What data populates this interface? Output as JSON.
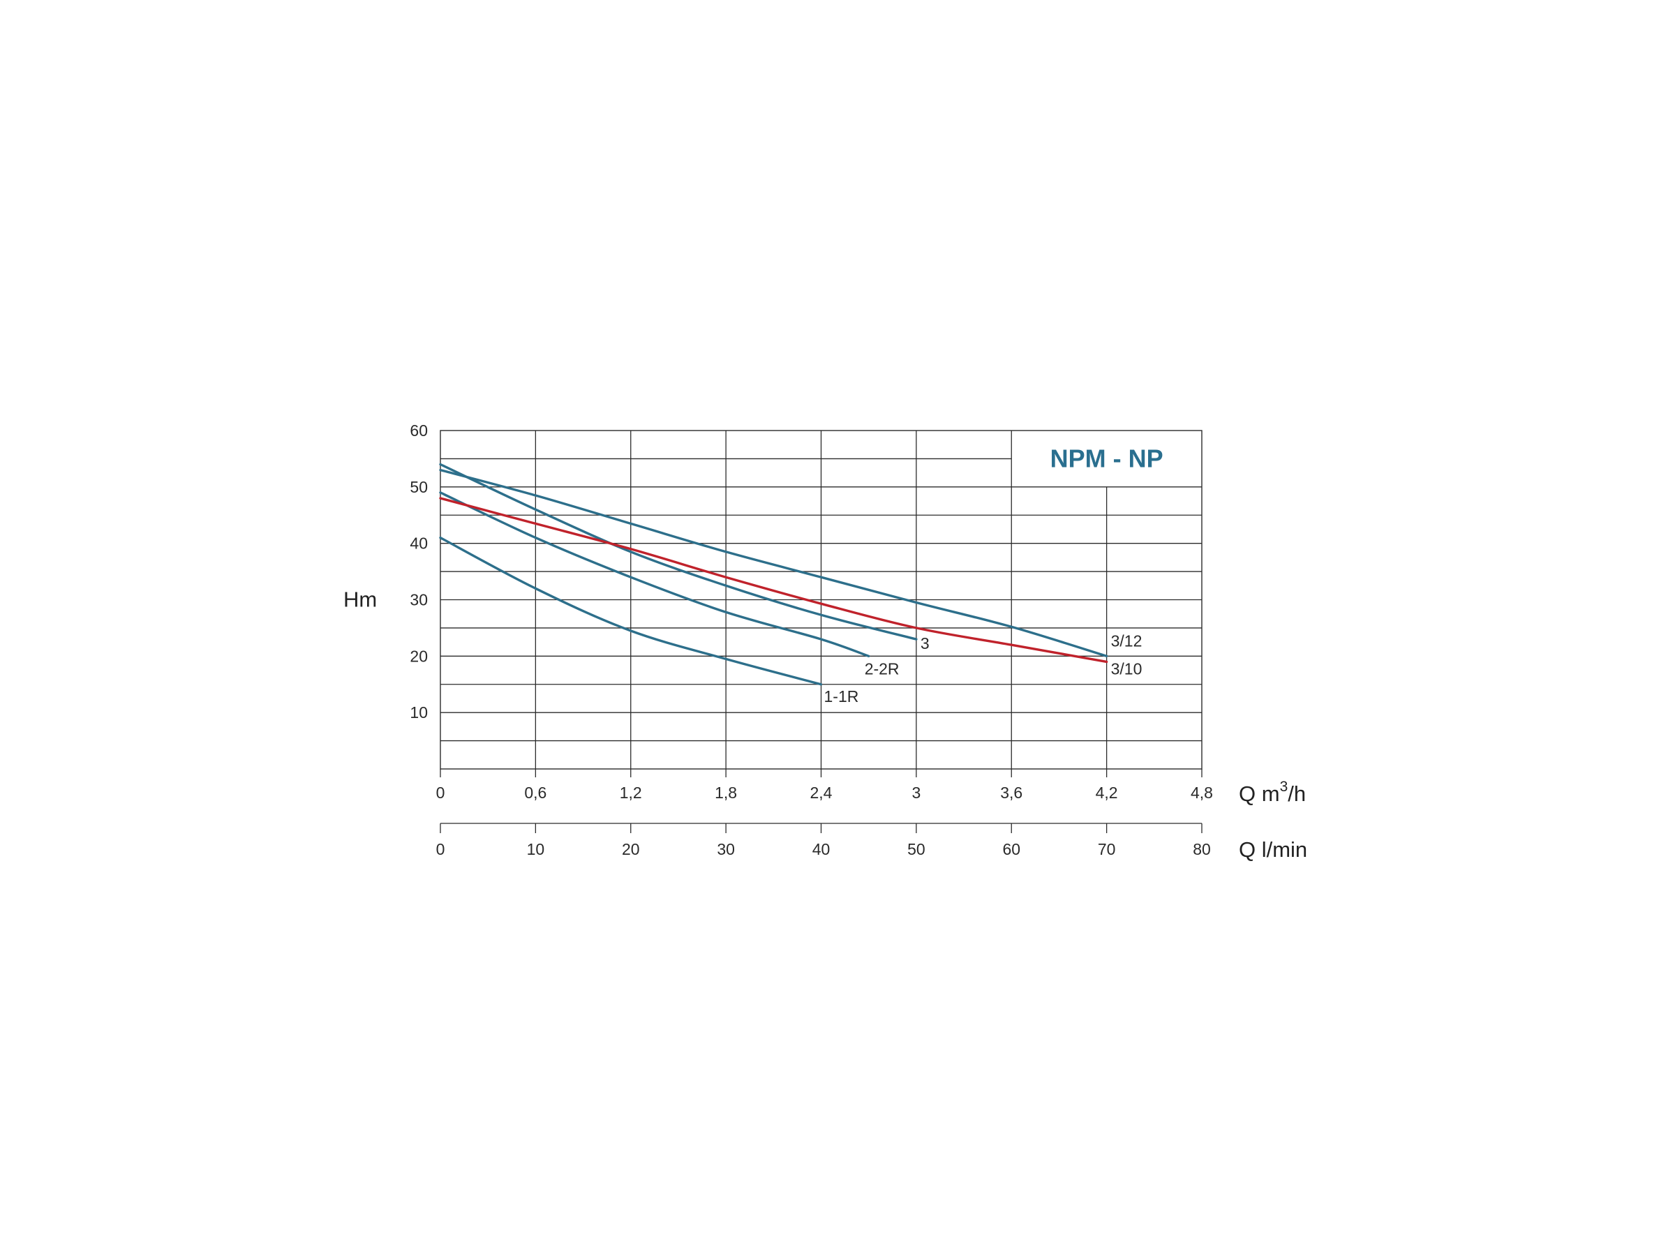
{
  "chart_data": {
    "type": "line",
    "title": "NPM - NP",
    "ylabel": "Hm",
    "xlabel": "Q m³/h",
    "xlabel_base": "Q m",
    "xlabel_sup": "3",
    "xlabel_tail": "/h",
    "x2label": "Q l/min",
    "xlim": [
      0,
      4.8
    ],
    "ylim": [
      0,
      60
    ],
    "x_ticks": [
      "0",
      "0,6",
      "1,2",
      "1,8",
      "2,4",
      "3",
      "3,6",
      "4,2",
      "4,8"
    ],
    "x2_ticks": [
      "0",
      "10",
      "20",
      "30",
      "40",
      "50",
      "60",
      "70",
      "80"
    ],
    "y_ticks": [
      "10",
      "20",
      "30",
      "40",
      "50",
      "60"
    ],
    "grid": true,
    "colors": {
      "blue": "#2d6f8b",
      "red": "#c0222b",
      "title": "#2a6f8f"
    },
    "series": [
      {
        "name": "1-1R",
        "color": "#2d6f8b",
        "x": [
          0,
          0.6,
          1.2,
          1.8,
          2.4
        ],
        "y": [
          41,
          32,
          24.5,
          19.5,
          15
        ]
      },
      {
        "name": "2-2R",
        "color": "#2d6f8b",
        "x": [
          0,
          0.6,
          1.2,
          1.8,
          2.4,
          2.7
        ],
        "y": [
          49,
          41,
          34,
          27.8,
          23,
          20
        ]
      },
      {
        "name": "3",
        "color": "#2d6f8b",
        "x": [
          0,
          0.6,
          1.2,
          1.8,
          2.4,
          3.0
        ],
        "y": [
          54,
          46,
          38.5,
          32.5,
          27.3,
          23
        ]
      },
      {
        "name": "3/10",
        "color": "#c0222b",
        "x": [
          0,
          0.6,
          1.2,
          1.8,
          2.4,
          3.0,
          3.6,
          4.2
        ],
        "y": [
          48,
          43.5,
          39,
          34,
          29.3,
          25,
          22,
          19
        ]
      },
      {
        "name": "3/12",
        "color": "#2d6f8b",
        "x": [
          0,
          0.6,
          1.2,
          1.8,
          2.4,
          3.0,
          3.6,
          4.2
        ],
        "y": [
          53,
          48.5,
          43.5,
          38.5,
          34,
          29.5,
          25.2,
          20
        ]
      }
    ]
  }
}
